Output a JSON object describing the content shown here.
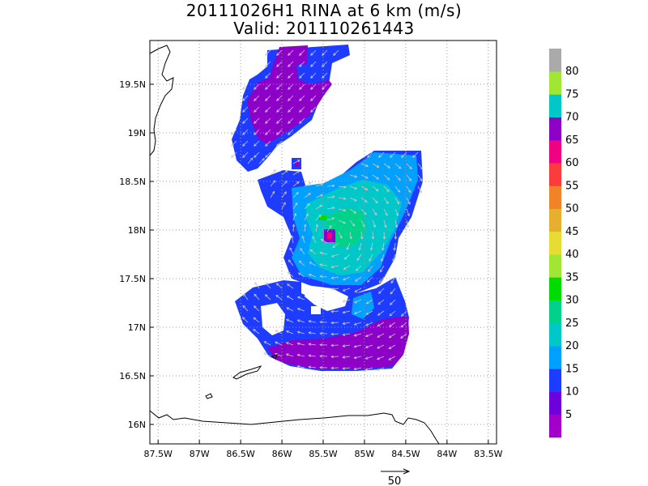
{
  "title": {
    "line1": "20111026H1 RINA at 6 km (m/s)",
    "line2": "Valid: 201110261443"
  },
  "axes": {
    "lon_ticks": [
      "87.5W",
      "87W",
      "86.5W",
      "86W",
      "85.5W",
      "85W",
      "84.5W",
      "84W",
      "83.5W"
    ],
    "lat_ticks": [
      "19.5N",
      "19N",
      "18.5N",
      "18N",
      "17.5N",
      "17N",
      "16.5N",
      "16N"
    ],
    "lon_range": [
      -87.6,
      -83.4
    ],
    "lat_range": [
      15.8,
      19.95
    ],
    "grid": "dotted"
  },
  "colorbar": {
    "levels": [
      "5",
      "10",
      "15",
      "20",
      "25",
      "30",
      "35",
      "40",
      "45",
      "50",
      "55",
      "60",
      "65",
      "70",
      "75",
      "80"
    ],
    "colors": [
      "#a000c8",
      "#6e00dc",
      "#1e3cff",
      "#00a0ff",
      "#00c8c8",
      "#00d28c",
      "#00dc00",
      "#a0e632",
      "#e6dc32",
      "#e6af2d",
      "#f08228",
      "#fa3c3c",
      "#f00082",
      "#8c00c8",
      "#00c8c8",
      "#a0e632",
      "#aaaaaa"
    ]
  },
  "vector_key": {
    "label": "50"
  },
  "colors": {
    "land_outline": "#000000",
    "arrow": "#c8c8c8",
    "grid": "#9a9a9a"
  }
}
